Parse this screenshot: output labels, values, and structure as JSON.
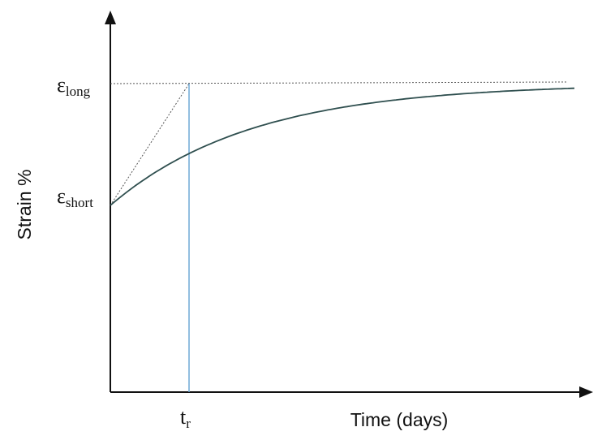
{
  "axes": {
    "y_label": "Strain %",
    "x_label": "Time (days)"
  },
  "labels": {
    "eps_long": {
      "symbol": "ε",
      "subscript": "long"
    },
    "eps_short": {
      "symbol": "ε",
      "subscript": "short"
    },
    "t_r": {
      "symbol": "t",
      "subscript": "r"
    }
  }
}
